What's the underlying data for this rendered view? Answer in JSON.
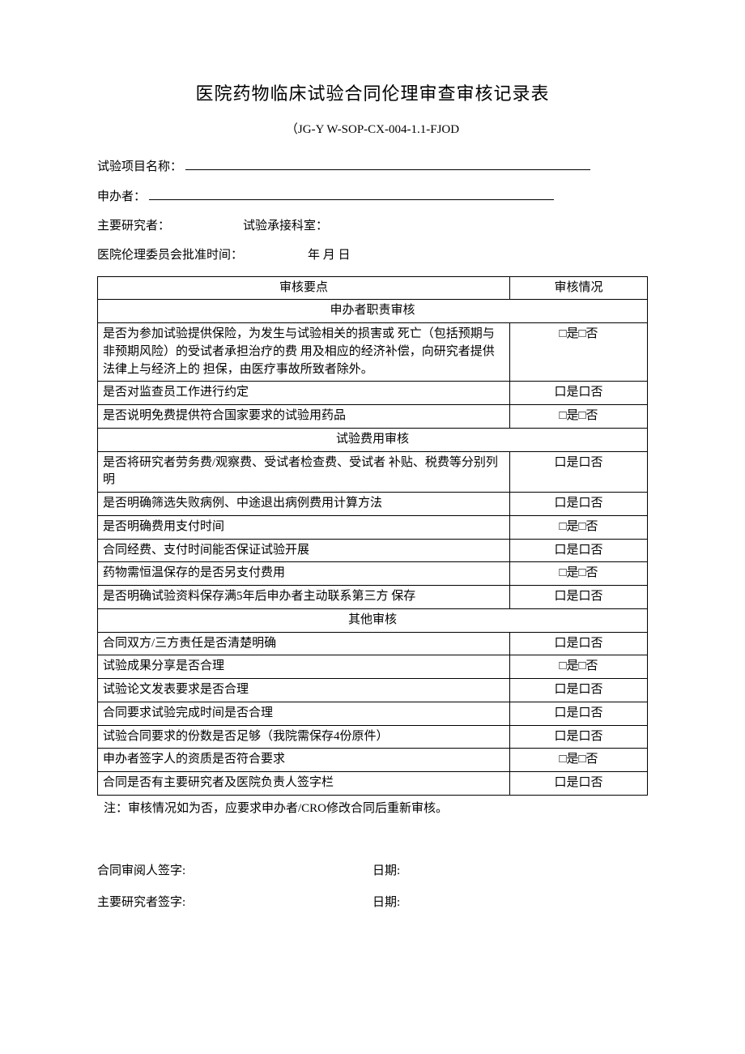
{
  "title": "医院药物临床试验合同伦理审查审核记录表",
  "subtitle": "（JG-Y W-SOP-CX-004-1.1-FJOD",
  "fields": {
    "project_label": "试验项目名称：",
    "sponsor_label": "申办者：",
    "researcher_label": "主要研究者：",
    "department_label": "试验承接科室：",
    "ethics_date_label": "医院伦理委员会批准时间：",
    "ethics_date_value": "年  月  日"
  },
  "table": {
    "head_point": "审核要点",
    "head_status": "审核情况",
    "sections": [
      {
        "title": "申办者职责审核",
        "rows": [
          {
            "item": "是否为参加试验提供保险，为发生与试验相关的损害或   死亡（包括预期与非预期风险）的受试者承担治疗的费 用及相应的经济补偿，向研究者提供法律上与经济上的   担保，由医疗事故所致者除外。",
            "status": "□是□否"
          },
          {
            "item": "是否对监查员工作进行约定",
            "status": "口是口否"
          },
          {
            "item": "是否说明免费提供符合国家要求的试验用药品",
            "status": "□是□否"
          }
        ]
      },
      {
        "title": "试验费用审核",
        "rows": [
          {
            "item": "是否将研究者劳务费/观察费、受试者检查费、受试者 补贴、税费等分别列明",
            "status": "口是口否"
          },
          {
            "item": "是否明确筛选失败病例、中途退出病例费用计算方法",
            "status": "口是口否"
          },
          {
            "item": "是否明确费用支付时间",
            "status": "□是□否"
          },
          {
            "item": "合同经费、支付时间能否保证试验开展",
            "status": "口是口否"
          },
          {
            "item": "药物需恒温保存的是否另支付费用",
            "status": "□是□否"
          },
          {
            "item": "是否明确试验资料保存满5年后申办者主动联系第三方 保存",
            "status": "口是口否"
          }
        ]
      },
      {
        "title": "其他审核",
        "rows": [
          {
            "item": "合同双方/三方责任是否清楚明确",
            "status": "口是口否"
          },
          {
            "item": "试验成果分享是否合理",
            "status": "□是□否"
          },
          {
            "item": "试验论文发表要求是否合理",
            "status": "口是口否"
          },
          {
            "item": "合同要求试验完成时间是否合理",
            "status": "口是口否"
          },
          {
            "item": "试验合同要求的份数是否足够（我院需保存4份原件）",
            "status": "口是口否"
          },
          {
            "item": "申办者签字人的资质是否符合要求",
            "status": "□是□否"
          },
          {
            "item": "合同是否有主要研究者及医院负责人签字栏",
            "status": "口是口否"
          }
        ]
      }
    ]
  },
  "note": "注：审核情况如为否，应要求申办者/CRO修改合同后重新审核。",
  "signatures": {
    "reviewer": "合同审阅人签字:",
    "researcher": "主要研究者签字:",
    "date": "日期:"
  },
  "style": {
    "page_bg": "#ffffff",
    "text_color": "#000000",
    "title_fontsize": 22,
    "body_fontsize": 15,
    "border_color": "#000000"
  }
}
